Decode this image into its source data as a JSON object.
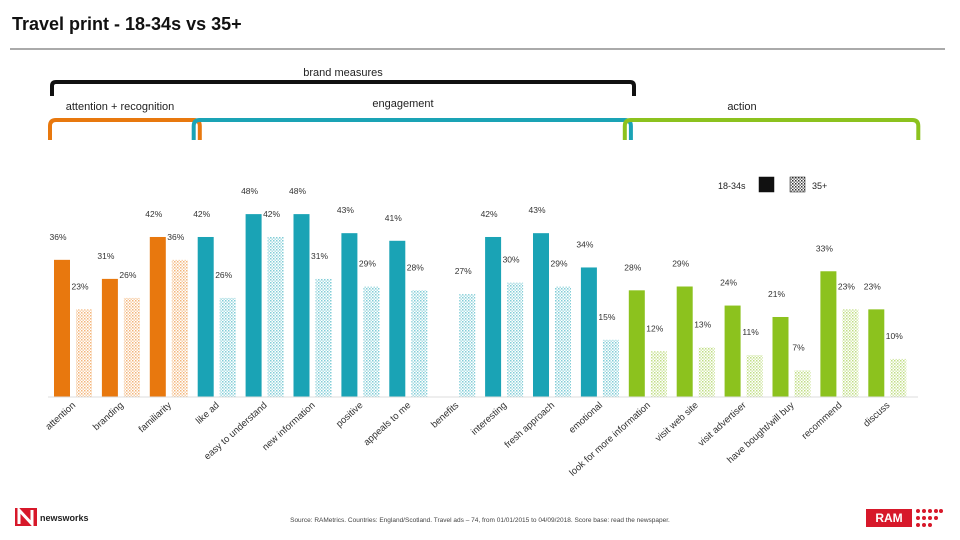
{
  "chart_data": {
    "type": "bar",
    "title": "Travel print - 18-34s vs 35+",
    "bracket_label": "brand measures",
    "groups": [
      {
        "label": "attention + recognition",
        "color": "#e8780e",
        "categories": [
          "attention",
          "branding",
          "familiarity"
        ]
      },
      {
        "label": "engagement",
        "color": "#1aa3b5",
        "categories": [
          "like ad",
          "easy to understand",
          "new information",
          "positive",
          "appeals to me",
          "benefits",
          "interesting",
          "fresh approach",
          "emotional"
        ]
      },
      {
        "label": "action",
        "color": "#8cc21e",
        "categories": [
          "look for more information",
          "visit web site",
          "visit advertiser",
          "have bought/will buy",
          "recommend",
          "discuss"
        ]
      }
    ],
    "series": [
      {
        "name": "18-34s",
        "pattern": "solid",
        "values": [
          36,
          31,
          42,
          42,
          48,
          48,
          43,
          41,
          null,
          42,
          43,
          34,
          28,
          29,
          24,
          21,
          33,
          23
        ],
        "value_labels": [
          "36%",
          "31%",
          "42%",
          "42%",
          "48%",
          "48%",
          "43%",
          "41%",
          null,
          "42%",
          "43%",
          "34%",
          "28%",
          "29%",
          "24%",
          "21%",
          "33%",
          "23%"
        ]
      },
      {
        "name": "35+",
        "pattern": "hatched",
        "values": [
          23,
          26,
          36,
          26,
          42,
          31,
          29,
          28,
          27,
          30,
          29,
          15,
          12,
          13,
          11,
          7,
          23,
          10
        ],
        "value_labels": [
          "23%",
          "26%",
          "36%",
          "26%",
          "42%",
          "31%",
          "29%",
          "28%",
          "27%",
          "30%",
          "29%",
          "15%",
          "12%",
          "13%",
          "11%",
          "7%",
          "23%",
          "10%"
        ]
      }
    ],
    "source": "Source: RAMetrics. Countries: England/Scotland. Travel ads – 74, from 01/01/2015 to 04/09/2018. Score base: read the newspaper.",
    "logo_left": "newsworks",
    "logo_right": "RAM"
  }
}
